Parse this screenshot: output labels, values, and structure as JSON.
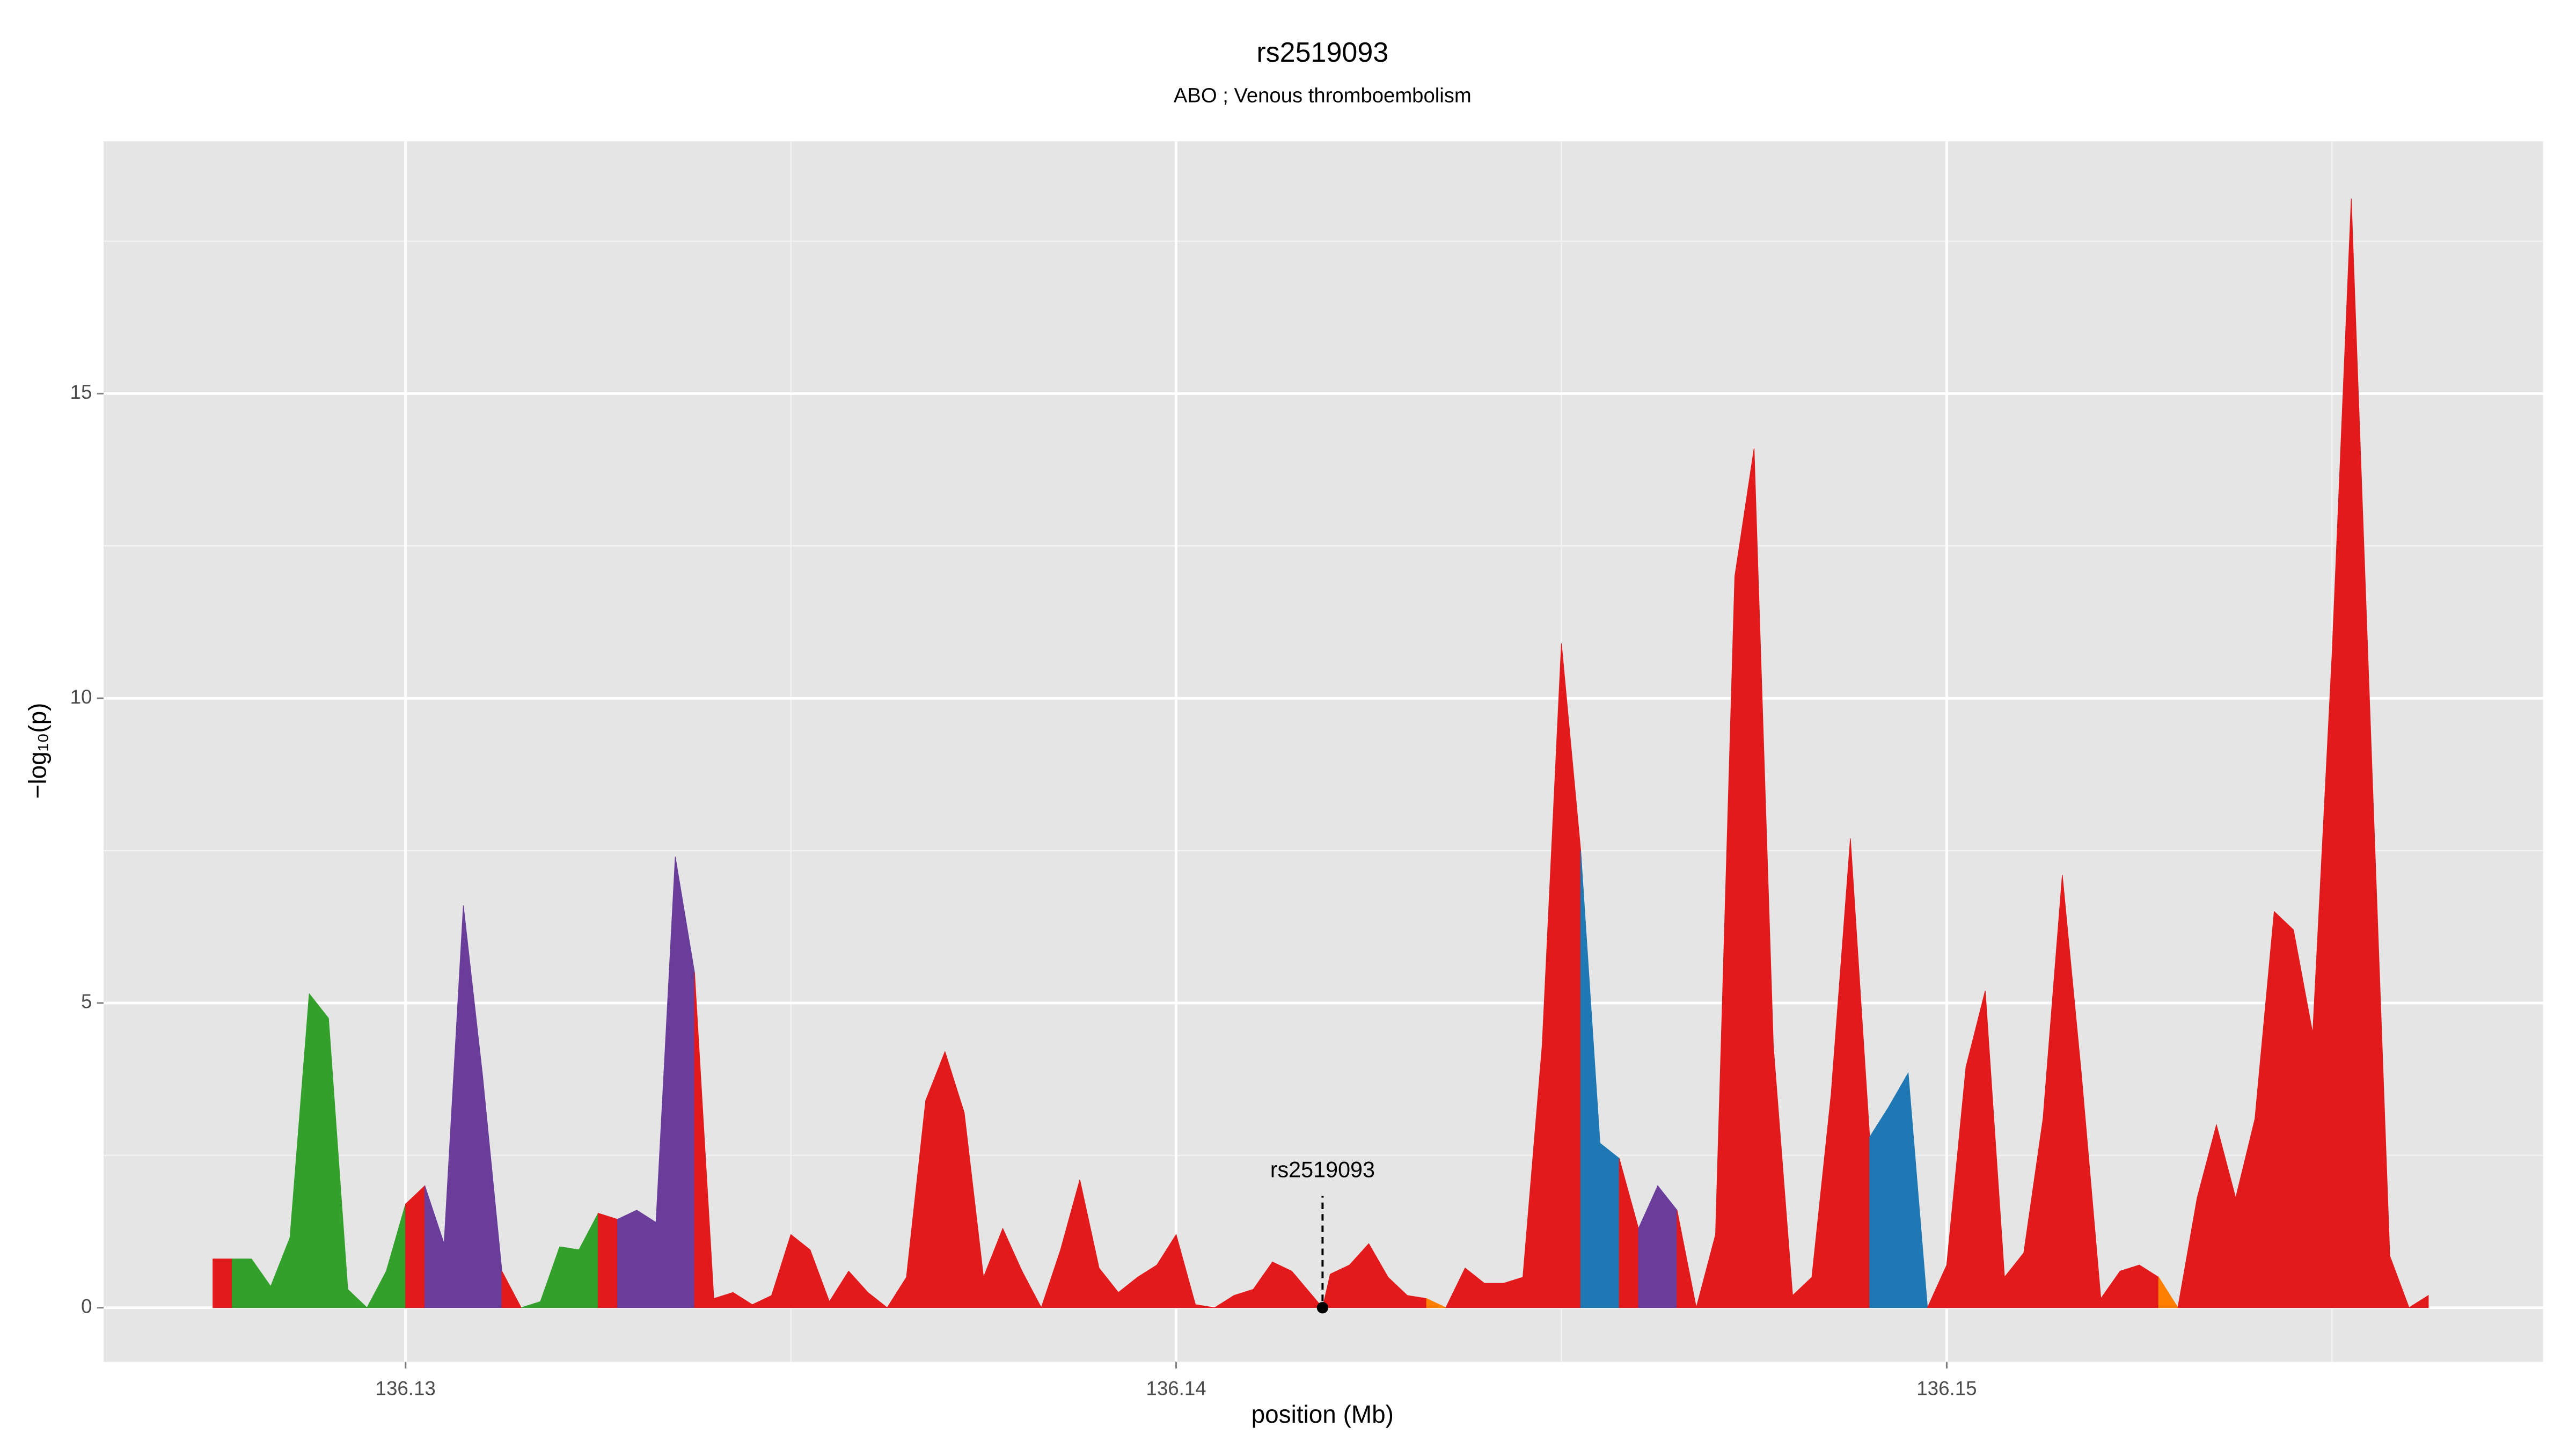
{
  "chart_data": {
    "type": "area",
    "title": "rs2519093",
    "subtitle": "ABO ; Venous thromboembolism",
    "x_label": "position (Mb)",
    "y_label": "−log₁₀(p)",
    "xlim": [
      136.12608,
      136.15774
    ],
    "ylim": [
      -0.89,
      19.14
    ],
    "xticks": [
      136.13,
      136.14,
      136.15
    ],
    "yticks": [
      0,
      5,
      10,
      15
    ],
    "x_minor_grid": [
      136.135,
      136.145,
      136.155
    ],
    "y_minor_grid": [
      2.5,
      7.5,
      12.5,
      17.5
    ],
    "grid": true,
    "series": [
      {
        "color": "#e31a1c",
        "x": [
          136.1275,
          136.12775
        ],
        "values": [
          0.8,
          0.8
        ]
      },
      {
        "color": "#33a02c",
        "x": [
          136.12775,
          136.128,
          136.12825,
          136.1285,
          136.12875,
          136.129,
          136.12925,
          136.1295,
          136.12975,
          136.13
        ],
        "values": [
          0.8,
          0.8,
          0.35,
          1.15,
          5.15,
          4.75,
          0.3,
          0,
          0.6,
          1.7
        ]
      },
      {
        "color": "#e31a1c",
        "x": [
          136.13,
          136.13025
        ],
        "values": [
          1.7,
          2.0
        ]
      },
      {
        "color": "#6a3d9a",
        "x": [
          136.13025,
          136.1305,
          136.13075,
          136.131,
          136.13125
        ],
        "values": [
          2.0,
          1.05,
          6.6,
          3.8,
          0.6
        ]
      },
      {
        "color": "#e31a1c",
        "x": [
          136.13125,
          136.1315
        ],
        "values": [
          0.6,
          0
        ]
      },
      {
        "color": "#33a02c",
        "x": [
          136.1315,
          136.13175,
          136.132,
          136.13225,
          136.1325
        ],
        "values": [
          0,
          0.1,
          1.0,
          0.95,
          1.55
        ]
      },
      {
        "color": "#e31a1c",
        "x": [
          136.1325,
          136.13275
        ],
        "values": [
          1.55,
          1.45
        ]
      },
      {
        "color": "#6a3d9a",
        "x": [
          136.13275,
          136.133,
          136.13325,
          136.1335,
          136.13375
        ],
        "values": [
          1.45,
          1.6,
          1.4,
          7.4,
          5.5
        ]
      },
      {
        "color": "#e31a1c",
        "x": [
          136.13375,
          136.134,
          136.13425,
          136.1345,
          136.13475,
          136.135,
          136.13525,
          136.1355,
          136.13575,
          136.136,
          136.13625,
          136.1365,
          136.13675,
          136.137,
          136.13725,
          136.1375,
          136.13775,
          136.138,
          136.13825,
          136.1385,
          136.13875,
          136.139,
          136.13925,
          136.1395,
          136.13975,
          136.14,
          136.14025,
          136.1405,
          136.14075,
          136.141,
          136.14125,
          136.1415,
          136.1419,
          136.142,
          136.14225,
          136.1425,
          136.14275,
          136.143,
          136.14325
        ],
        "values": [
          5.5,
          0.15,
          0.25,
          0.05,
          0.2,
          1.2,
          0.95,
          0.1,
          0.6,
          0.25,
          0,
          0.5,
          3.4,
          4.2,
          3.2,
          0.5,
          1.3,
          0.6,
          0,
          0.95,
          2.1,
          0.65,
          0.25,
          0.5,
          0.7,
          1.2,
          0.05,
          0,
          0.2,
          0.3,
          0.75,
          0.6,
          0,
          0.55,
          0.7,
          1.05,
          0.5,
          0.2,
          0.15
        ]
      },
      {
        "color": "#ff7f00",
        "x": [
          136.14325,
          136.1435
        ],
        "values": [
          0.15,
          0
        ]
      },
      {
        "color": "#e31a1c",
        "x": [
          136.1435,
          136.14375,
          136.144,
          136.14425,
          136.1445,
          136.14475,
          136.145,
          136.14525
        ],
        "values": [
          0,
          0.65,
          0.4,
          0.4,
          0.5,
          4.3,
          10.9,
          7.5
        ]
      },
      {
        "color": "#1f78b4",
        "x": [
          136.14525,
          136.1455,
          136.14575
        ],
        "values": [
          7.5,
          2.7,
          2.45
        ]
      },
      {
        "color": "#e31a1c",
        "x": [
          136.14575,
          136.146
        ],
        "values": [
          2.45,
          1.3
        ]
      },
      {
        "color": "#6a3d9a",
        "x": [
          136.146,
          136.14625,
          136.1465
        ],
        "values": [
          1.3,
          2.0,
          1.6
        ]
      },
      {
        "color": "#e31a1c",
        "x": [
          136.1465,
          136.14675,
          136.147,
          136.14725,
          136.1475,
          136.14775,
          136.148,
          136.14825,
          136.1485,
          136.14875,
          136.149
        ],
        "values": [
          1.6,
          0,
          1.2,
          12.0,
          14.1,
          4.3,
          0.2,
          0.5,
          3.5,
          7.7,
          2.8
        ]
      },
      {
        "color": "#1f78b4",
        "x": [
          136.149,
          136.14925,
          136.1495,
          136.14975
        ],
        "values": [
          2.8,
          3.3,
          3.85,
          0
        ]
      },
      {
        "color": "#e31a1c",
        "x": [
          136.14975,
          136.15,
          136.15025,
          136.1505,
          136.15075,
          136.151,
          136.15125,
          136.1515,
          136.15175,
          136.152,
          136.15225,
          136.1525,
          136.15275
        ],
        "values": [
          0,
          0.7,
          3.95,
          5.2,
          0.5,
          0.9,
          3.1,
          7.1,
          3.8,
          0.15,
          0.6,
          0.7,
          0.5
        ]
      },
      {
        "color": "#ff7f00",
        "x": [
          136.15275,
          136.153
        ],
        "values": [
          0.5,
          0
        ]
      },
      {
        "color": "#e31a1c",
        "x": [
          136.153,
          136.15325,
          136.1535,
          136.15375,
          136.154,
          136.15425,
          136.1545,
          136.15475,
          136.155,
          136.15525,
          136.1555,
          136.15575,
          136.156,
          136.15625
        ],
        "values": [
          0,
          1.8,
          3.0,
          1.8,
          3.1,
          6.5,
          6.2,
          4.5,
          10.7,
          18.2,
          9.5,
          0.85,
          0,
          0.2
        ]
      }
    ],
    "annotation": {
      "text": "rs2519093",
      "x": 136.1419,
      "y": 0
    }
  }
}
